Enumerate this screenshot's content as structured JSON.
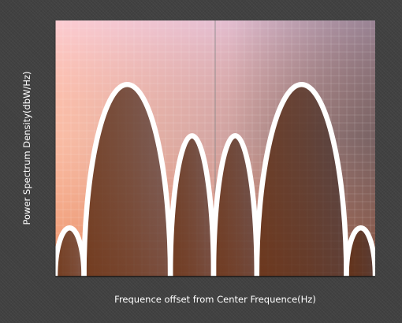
{
  "chart_data": {
    "type": "line",
    "title": "",
    "xlabel": "Frequence offset from Center Frequence(Hz)",
    "ylabel": "Power Spectrum Density(dbW/Hz)",
    "xlim": [
      0,
      1
    ],
    "ylim": [
      0,
      1
    ],
    "grid": true,
    "tick_labels_shown": false,
    "series": [
      {
        "lobes": [
          {
            "x_start": 0.0,
            "x_end": 0.09,
            "peak": 0.19
          },
          {
            "x_start": 0.09,
            "x_end": 0.36,
            "peak": 0.75
          },
          {
            "x_start": 0.36,
            "x_end": 0.495,
            "peak": 0.55
          },
          {
            "x_start": 0.495,
            "x_end": 0.63,
            "peak": 0.55
          },
          {
            "x_start": 0.63,
            "x_end": 0.91,
            "peak": 0.75
          },
          {
            "x_start": 0.91,
            "x_end": 1.0,
            "peak": 0.19
          }
        ]
      }
    ],
    "colors": {
      "line": "#ffffff",
      "fill": "#5a2e14",
      "plot_bg_top_left": "#f7c6d4",
      "plot_bg_top_right": "#7d7686",
      "plot_bg_bottom_left": "#e86a2a",
      "plot_bg_bottom_right": "#5a5a66",
      "grid": "#ffffff"
    }
  }
}
